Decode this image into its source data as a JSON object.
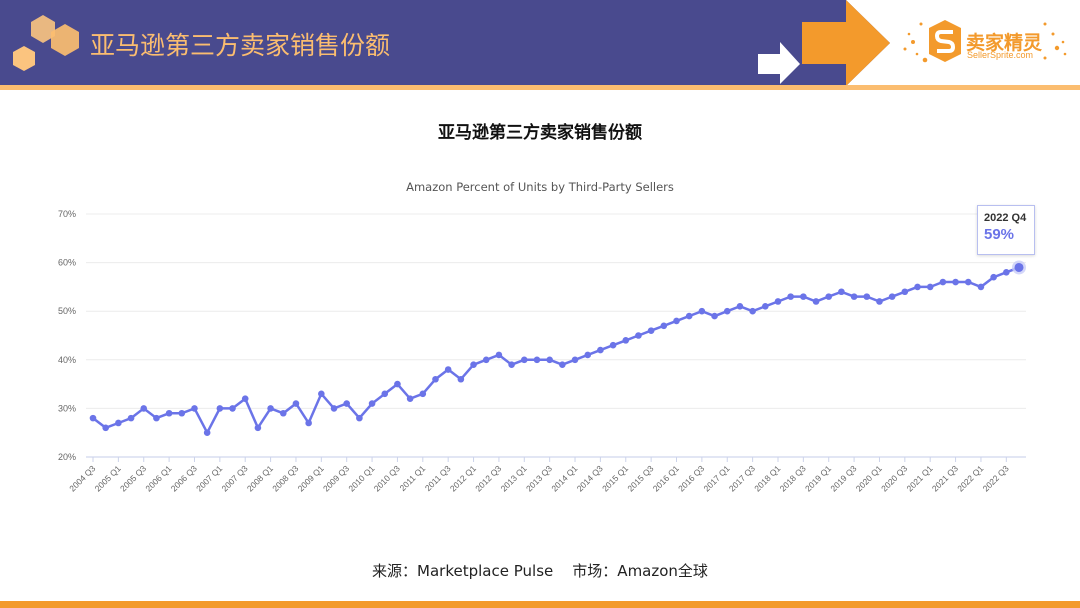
{
  "header": {
    "title": "亚马逊第三方卖家销售份额",
    "logo_cn": "卖家精灵",
    "logo_en": "SellerSprite.com",
    "colors": {
      "band": "#494a8e",
      "accent": "#fbbd70",
      "orange": "#f39a2c"
    }
  },
  "page_title": "亚马逊第三方卖家销售份额",
  "tooltip": {
    "label": "2022 Q4",
    "value": "59%"
  },
  "footer": {
    "source": "来源：Marketplace Pulse    市场：Amazon全球"
  },
  "chart_data": {
    "type": "line",
    "title": "Amazon Percent of Units by Third-Party Sellers",
    "xlabel": "",
    "ylabel": "",
    "ylim": [
      20,
      70
    ],
    "yticks": [
      "20%",
      "30%",
      "40%",
      "50%",
      "60%",
      "70%"
    ],
    "grid": true,
    "legend": "none",
    "line_color": "#6b74e8",
    "x": [
      "2004 Q3",
      "2004 Q4",
      "2005 Q1",
      "2005 Q2",
      "2005 Q3",
      "2005 Q4",
      "2006 Q1",
      "2006 Q2",
      "2006 Q3",
      "2006 Q4",
      "2007 Q1",
      "2007 Q2",
      "2007 Q3",
      "2007 Q4",
      "2008 Q1",
      "2008 Q2",
      "2008 Q3",
      "2008 Q4",
      "2009 Q1",
      "2009 Q2",
      "2009 Q3",
      "2009 Q4",
      "2010 Q1",
      "2010 Q2",
      "2010 Q3",
      "2010 Q4",
      "2011 Q1",
      "2011 Q2",
      "2011 Q3",
      "2011 Q4",
      "2012 Q1",
      "2012 Q2",
      "2012 Q3",
      "2012 Q4",
      "2013 Q1",
      "2013 Q2",
      "2013 Q3",
      "2013 Q4",
      "2014 Q1",
      "2014 Q2",
      "2014 Q3",
      "2014 Q4",
      "2015 Q1",
      "2015 Q2",
      "2015 Q3",
      "2015 Q4",
      "2016 Q1",
      "2016 Q2",
      "2016 Q3",
      "2016 Q4",
      "2017 Q1",
      "2017 Q2",
      "2017 Q3",
      "2017 Q4",
      "2018 Q1",
      "2018 Q2",
      "2018 Q3",
      "2018 Q4",
      "2019 Q1",
      "2019 Q2",
      "2019 Q3",
      "2019 Q4",
      "2020 Q1",
      "2020 Q2",
      "2020 Q3",
      "2020 Q4",
      "2021 Q1",
      "2021 Q2",
      "2021 Q3",
      "2021 Q4",
      "2022 Q1",
      "2022 Q2",
      "2022 Q3",
      "2022 Q4"
    ],
    "tick_labels": [
      "2004 Q3",
      "2005 Q1",
      "2005 Q3",
      "2006 Q1",
      "2006 Q3",
      "2007 Q1",
      "2007 Q3",
      "2008 Q1",
      "2008 Q3",
      "2009 Q1",
      "2009 Q3",
      "2010 Q1",
      "2010 Q3",
      "2011 Q1",
      "2011 Q3",
      "2012 Q1",
      "2012 Q3",
      "2013 Q1",
      "2013 Q3",
      "2014 Q1",
      "2014 Q3",
      "2015 Q1",
      "2015 Q3",
      "2016 Q1",
      "2016 Q3",
      "2017 Q1",
      "2017 Q3",
      "2018 Q1",
      "2018 Q3",
      "2019 Q1",
      "2019 Q3",
      "2020 Q1",
      "2020 Q3",
      "2021 Q1",
      "2021 Q3",
      "2022 Q1",
      "2022 Q3"
    ],
    "series": [
      {
        "name": "Percent of Units by Third-Party Sellers",
        "values": [
          28,
          26,
          27,
          28,
          30,
          28,
          29,
          29,
          30,
          25,
          30,
          30,
          32,
          26,
          30,
          29,
          31,
          27,
          33,
          30,
          31,
          28,
          31,
          33,
          35,
          32,
          33,
          36,
          38,
          36,
          39,
          40,
          41,
          39,
          40,
          40,
          40,
          39,
          40,
          41,
          42,
          43,
          44,
          45,
          46,
          47,
          48,
          49,
          50,
          49,
          50,
          51,
          50,
          51,
          52,
          53,
          53,
          52,
          53,
          54,
          53,
          53,
          52,
          53,
          54,
          55,
          55,
          56,
          56,
          56,
          55,
          57,
          58,
          59
        ]
      }
    ],
    "highlighted_point": {
      "x": "2022 Q4",
      "value": 59
    }
  }
}
